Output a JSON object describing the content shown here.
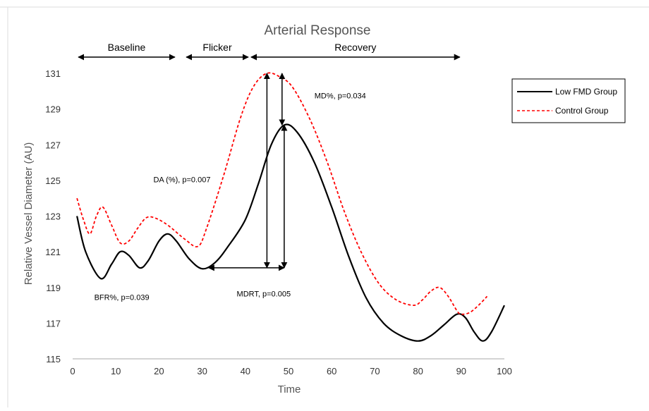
{
  "chart_data": {
    "type": "line",
    "title": "Arterial Response",
    "xlabel": "Time",
    "ylabel": "Relative Vessel Diameter (AU)",
    "xlim": [
      0,
      100
    ],
    "ylim": [
      115,
      131
    ],
    "x_ticks": [
      "0",
      "10",
      "20",
      "30",
      "40",
      "50",
      "60",
      "70",
      "80",
      "90",
      "100"
    ],
    "y_ticks": [
      "115",
      "117",
      "119",
      "121",
      "123",
      "125",
      "127",
      "129",
      "131"
    ],
    "grid": false,
    "legend_position": "right",
    "series": [
      {
        "name": "Low FMD Group",
        "color": "#000000",
        "style": "solid",
        "points": [
          [
            1,
            123
          ],
          [
            3,
            121
          ],
          [
            6.5,
            119.5
          ],
          [
            9,
            120.3
          ],
          [
            11,
            121
          ],
          [
            13,
            120.8
          ],
          [
            15.5,
            120.1
          ],
          [
            17.5,
            120.5
          ],
          [
            20,
            121.6
          ],
          [
            22,
            122
          ],
          [
            24,
            121.6
          ],
          [
            27,
            120.6
          ],
          [
            30,
            120.05
          ],
          [
            33,
            120.4
          ],
          [
            36,
            121.3
          ],
          [
            40,
            122.8
          ],
          [
            43,
            124.8
          ],
          [
            46,
            127
          ],
          [
            49,
            128.1
          ],
          [
            52,
            127.7
          ],
          [
            56,
            126
          ],
          [
            60,
            123.5
          ],
          [
            64,
            120.7
          ],
          [
            68,
            118.4
          ],
          [
            72,
            117
          ],
          [
            76,
            116.3
          ],
          [
            80,
            116
          ],
          [
            83,
            116.3
          ],
          [
            86,
            116.9
          ],
          [
            89,
            117.5
          ],
          [
            91,
            117.3
          ],
          [
            93,
            116.5
          ],
          [
            95,
            116
          ],
          [
            97,
            116.5
          ],
          [
            100,
            118
          ]
        ]
      },
      {
        "name": "Control Group",
        "color": "#ff0000",
        "style": "dashed",
        "points": [
          [
            1,
            124
          ],
          [
            2.5,
            122.8
          ],
          [
            4,
            122
          ],
          [
            5.5,
            123
          ],
          [
            7,
            123.5
          ],
          [
            9,
            122.5
          ],
          [
            11,
            121.5
          ],
          [
            13,
            121.6
          ],
          [
            15,
            122.3
          ],
          [
            17,
            122.9
          ],
          [
            19,
            122.9
          ],
          [
            22,
            122.5
          ],
          [
            26,
            121.7
          ],
          [
            29,
            121.3
          ],
          [
            31,
            122.3
          ],
          [
            35,
            125.3
          ],
          [
            39,
            128.6
          ],
          [
            42,
            130.3
          ],
          [
            45,
            131
          ],
          [
            48,
            130.8
          ],
          [
            51,
            130.2
          ],
          [
            55,
            128.4
          ],
          [
            59,
            126
          ],
          [
            63,
            123.2
          ],
          [
            67,
            120.9
          ],
          [
            71,
            119.2
          ],
          [
            75,
            118.3
          ],
          [
            79,
            118
          ],
          [
            81,
            118.3
          ],
          [
            83,
            118.8
          ],
          [
            85,
            119
          ],
          [
            87,
            118.5
          ],
          [
            89,
            117.7
          ],
          [
            90,
            117.5
          ],
          [
            92,
            117.6
          ],
          [
            94,
            118
          ],
          [
            96,
            118.5
          ]
        ]
      }
    ],
    "phases": [
      {
        "label": "Baseline",
        "start": 1,
        "end": 24
      },
      {
        "label": "Flicker",
        "start": 26,
        "end": 41
      },
      {
        "label": "Recovery",
        "start": 41,
        "end": 90
      }
    ],
    "annotations": [
      {
        "text": "MD%, p=0.034",
        "x": 56,
        "y": 129.6
      },
      {
        "text": "DA (%),  p=0.007",
        "x": 18.7,
        "y": 124.9
      },
      {
        "text": "MDRT, p=0.005",
        "x": 38,
        "y": 118.5
      },
      {
        "text": "BFR%, p=0.039",
        "x": 5,
        "y": 118.3
      }
    ],
    "arrows": [
      {
        "from": [
          45,
          120.1
        ],
        "to": [
          45,
          131
        ]
      },
      {
        "from": [
          49,
          120.1
        ],
        "to": [
          49,
          128.1
        ]
      },
      {
        "from": [
          48.5,
          131
        ],
        "to": [
          48.5,
          128.1
        ]
      },
      {
        "from": [
          31.5,
          120.1
        ],
        "to": [
          49,
          120.1
        ]
      }
    ]
  }
}
